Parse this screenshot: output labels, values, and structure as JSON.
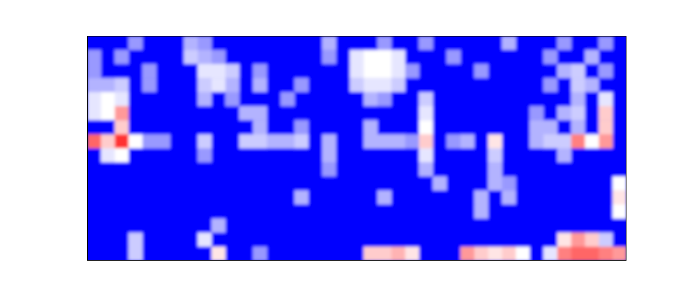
{
  "chart_data": {
    "type": "heatmap",
    "tick_labels": false,
    "color_range": [
      0,
      1
    ],
    "cells": [
      [
        0,
        0,
        0,
        0.3,
        0,
        0,
        0,
        0.35,
        0.3,
        0,
        0,
        0,
        0,
        0,
        0,
        0,
        0,
        0.35,
        0,
        0,
        0,
        0.3,
        0,
        0,
        0.3,
        0,
        0,
        0,
        0,
        0,
        0.35,
        0,
        0,
        0,
        0.3,
        0,
        0,
        0.3,
        0
      ],
      [
        0.3,
        0,
        0.3,
        0,
        0,
        0,
        0,
        0.4,
        0.35,
        0.3,
        0,
        0,
        0,
        0,
        0,
        0,
        0,
        0.3,
        0,
        0.45,
        0.5,
        0.5,
        0.45,
        0,
        0,
        0,
        0.3,
        0,
        0,
        0,
        0,
        0,
        0,
        0.3,
        0,
        0,
        0.35,
        0,
        0
      ],
      [
        0.3,
        0,
        0,
        0,
        0.3,
        0,
        0,
        0,
        0.45,
        0.45,
        0.4,
        0,
        0.3,
        0,
        0,
        0,
        0,
        0,
        0,
        0.45,
        0.5,
        0.5,
        0.45,
        0.3,
        0,
        0,
        0,
        0,
        0.3,
        0,
        0,
        0,
        0,
        0,
        0.35,
        0.4,
        0,
        0.3,
        0
      ],
      [
        0.35,
        0.35,
        0.4,
        0,
        0.3,
        0,
        0,
        0,
        0.4,
        0.45,
        0.35,
        0,
        0.35,
        0,
        0,
        0.3,
        0,
        0,
        0,
        0.4,
        0.45,
        0.45,
        0.4,
        0,
        0,
        0,
        0,
        0,
        0,
        0,
        0,
        0,
        0,
        0.3,
        0,
        0.4,
        0.35,
        0,
        0
      ],
      [
        0.45,
        0.5,
        0.45,
        0,
        0,
        0,
        0,
        0,
        0.35,
        0,
        0.3,
        0,
        0,
        0,
        0.3,
        0,
        0,
        0,
        0,
        0,
        0.35,
        0.3,
        0,
        0,
        0.4,
        0,
        0,
        0,
        0,
        0,
        0,
        0,
        0,
        0,
        0,
        0.35,
        0,
        0.45,
        0
      ],
      [
        0.45,
        0.5,
        0.7,
        0,
        0,
        0,
        0,
        0,
        0,
        0,
        0,
        0.35,
        0.35,
        0,
        0,
        0,
        0,
        0,
        0,
        0,
        0,
        0,
        0,
        0,
        0.45,
        0,
        0,
        0,
        0,
        0,
        0,
        0,
        0.3,
        0,
        0.35,
        0.4,
        0,
        0.6,
        0
      ],
      [
        0,
        0,
        0.6,
        0,
        0,
        0,
        0,
        0,
        0,
        0,
        0,
        0,
        0.35,
        0,
        0,
        0.3,
        0,
        0,
        0,
        0,
        0.35,
        0,
        0,
        0,
        0.5,
        0,
        0,
        0,
        0,
        0,
        0,
        0,
        0.35,
        0.35,
        0,
        0.35,
        0,
        0.6,
        0
      ],
      [
        0.8,
        0.6,
        0.9,
        0.5,
        0.3,
        0.3,
        0,
        0,
        0.4,
        0,
        0,
        0.4,
        0.4,
        0.35,
        0.35,
        0.4,
        0,
        0.35,
        0,
        0,
        0.35,
        0.35,
        0.35,
        0.3,
        0.6,
        0,
        0.3,
        0.35,
        0,
        0.55,
        0,
        0,
        0.35,
        0.4,
        0.4,
        0.75,
        0.5,
        0.7,
        0
      ],
      [
        0,
        0.45,
        0.5,
        0,
        0,
        0,
        0,
        0,
        0.3,
        0,
        0,
        0,
        0,
        0,
        0,
        0,
        0,
        0.35,
        0,
        0,
        0,
        0,
        0,
        0,
        0.45,
        0,
        0,
        0,
        0,
        0.4,
        0,
        0,
        0,
        0,
        0.35,
        0,
        0,
        0,
        0
      ],
      [
        0,
        0,
        0,
        0,
        0,
        0,
        0,
        0,
        0,
        0,
        0,
        0,
        0,
        0,
        0,
        0,
        0,
        0.3,
        0,
        0,
        0,
        0,
        0,
        0,
        0.35,
        0,
        0,
        0,
        0,
        0.35,
        0,
        0,
        0,
        0,
        0,
        0,
        0,
        0,
        0
      ],
      [
        0,
        0,
        0,
        0,
        0,
        0,
        0,
        0,
        0,
        0,
        0,
        0,
        0,
        0,
        0,
        0,
        0,
        0,
        0,
        0,
        0,
        0,
        0,
        0,
        0,
        0.35,
        0,
        0,
        0,
        0.35,
        0.3,
        0,
        0,
        0,
        0,
        0,
        0,
        0,
        0.5
      ],
      [
        0,
        0,
        0,
        0,
        0,
        0,
        0,
        0,
        0,
        0,
        0,
        0,
        0,
        0,
        0,
        0.35,
        0,
        0,
        0,
        0,
        0,
        0.35,
        0,
        0,
        0,
        0,
        0,
        0,
        0.35,
        0,
        0.35,
        0,
        0,
        0,
        0,
        0,
        0,
        0,
        0.55
      ],
      [
        0,
        0,
        0,
        0,
        0,
        0,
        0,
        0,
        0,
        0,
        0,
        0,
        0,
        0,
        0,
        0,
        0,
        0,
        0,
        0,
        0,
        0,
        0,
        0,
        0,
        0,
        0,
        0,
        0.35,
        0,
        0,
        0,
        0,
        0,
        0,
        0,
        0,
        0,
        0.5
      ],
      [
        0,
        0,
        0,
        0,
        0,
        0,
        0,
        0,
        0,
        0.35,
        0,
        0,
        0,
        0,
        0,
        0,
        0,
        0,
        0,
        0,
        0,
        0,
        0,
        0,
        0,
        0,
        0,
        0,
        0,
        0,
        0,
        0,
        0,
        0,
        0,
        0,
        0,
        0,
        0
      ],
      [
        0,
        0,
        0,
        0.4,
        0,
        0,
        0,
        0,
        0.45,
        0,
        0,
        0,
        0,
        0,
        0,
        0,
        0,
        0,
        0,
        0,
        0,
        0,
        0,
        0,
        0,
        0,
        0,
        0,
        0,
        0,
        0,
        0,
        0,
        0,
        0.55,
        0.7,
        0.6,
        0.4,
        0
      ],
      [
        0,
        0,
        0,
        0.4,
        0,
        0,
        0,
        0,
        0,
        0.55,
        0,
        0,
        0.3,
        0,
        0,
        0,
        0,
        0,
        0,
        0,
        0.6,
        0.6,
        0.65,
        0.55,
        0,
        0,
        0,
        0.7,
        0.6,
        0.55,
        0.6,
        0.5,
        0,
        0.45,
        0.75,
        0.8,
        0.8,
        0.75,
        0.7
      ]
    ]
  }
}
